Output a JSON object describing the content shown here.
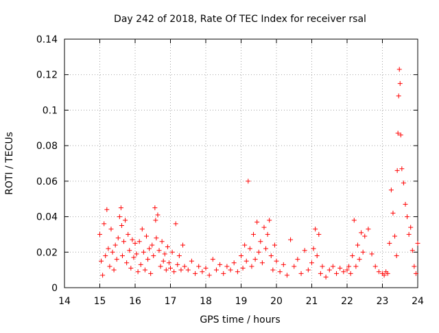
{
  "chart_data": {
    "type": "scatter",
    "title": "Day 242 of 2018, Rate Of TEC Index for receiver rsal",
    "xlabel": "GPS time / hours",
    "ylabel": "ROTI / TECUs",
    "xlim": [
      14,
      24
    ],
    "ylim": [
      0,
      0.14
    ],
    "x_ticks": [
      14,
      15,
      16,
      17,
      18,
      19,
      20,
      21,
      22,
      23,
      24
    ],
    "x_tick_labels": [
      "14",
      "15",
      "16",
      "17",
      "18",
      "19",
      "20",
      "21",
      "22",
      "23",
      "24"
    ],
    "y_ticks": [
      0,
      0.02,
      0.04,
      0.06,
      0.08,
      0.1,
      0.12,
      0.14
    ],
    "y_tick_labels": [
      "0",
      "0.02",
      "0.04",
      "0.06",
      "0.08",
      "0.1",
      "0.12",
      "0.14"
    ],
    "grid": true,
    "marker": "plus",
    "marker_color": "#ff0000",
    "series": [
      {
        "name": "ROTI",
        "x": [
          15.0,
          15.04,
          15.08,
          15.12,
          15.16,
          15.2,
          15.24,
          15.28,
          15.32,
          15.36,
          15.4,
          15.44,
          15.48,
          15.52,
          15.56,
          15.6,
          15.62,
          15.64,
          15.68,
          15.72,
          15.76,
          15.8,
          15.84,
          15.88,
          15.92,
          15.96,
          16.0,
          16.04,
          16.08,
          16.12,
          16.16,
          16.2,
          16.24,
          16.28,
          16.32,
          16.36,
          16.4,
          16.44,
          16.48,
          16.52,
          16.56,
          16.58,
          16.6,
          16.64,
          16.68,
          16.72,
          16.76,
          16.8,
          16.84,
          16.88,
          16.92,
          16.96,
          17.0,
          17.05,
          17.1,
          17.15,
          17.2,
          17.25,
          17.3,
          17.35,
          17.4,
          17.5,
          17.6,
          17.7,
          17.8,
          17.9,
          18.0,
          18.1,
          18.2,
          18.3,
          18.4,
          18.5,
          18.6,
          18.7,
          18.8,
          18.9,
          19.0,
          19.05,
          19.1,
          19.15,
          19.2,
          19.25,
          19.3,
          19.35,
          19.4,
          19.45,
          19.5,
          19.55,
          19.6,
          19.65,
          19.7,
          19.75,
          19.8,
          19.85,
          19.9,
          19.95,
          20.0,
          20.1,
          20.2,
          20.3,
          20.4,
          20.5,
          20.6,
          20.7,
          20.8,
          20.9,
          21.0,
          21.05,
          21.1,
          21.15,
          21.2,
          21.25,
          21.3,
          21.4,
          21.5,
          21.6,
          21.7,
          21.8,
          21.9,
          22.0,
          22.05,
          22.1,
          22.15,
          22.2,
          22.25,
          22.3,
          22.35,
          22.4,
          22.45,
          22.5,
          22.6,
          22.7,
          22.8,
          22.9,
          23.0,
          23.05,
          23.1,
          23.15,
          23.2,
          23.25,
          23.3,
          23.35,
          23.4,
          23.42,
          23.44,
          23.46,
          23.48,
          23.5,
          23.52,
          23.55,
          23.6,
          23.65,
          23.7,
          23.75,
          23.8,
          23.85,
          23.9,
          23.95,
          24.0
        ],
        "y": [
          0.03,
          0.015,
          0.007,
          0.036,
          0.018,
          0.044,
          0.022,
          0.012,
          0.033,
          0.02,
          0.01,
          0.024,
          0.016,
          0.028,
          0.04,
          0.045,
          0.035,
          0.018,
          0.026,
          0.038,
          0.014,
          0.03,
          0.021,
          0.011,
          0.027,
          0.017,
          0.025,
          0.019,
          0.009,
          0.026,
          0.013,
          0.033,
          0.02,
          0.01,
          0.029,
          0.016,
          0.022,
          0.008,
          0.024,
          0.018,
          0.045,
          0.038,
          0.028,
          0.041,
          0.021,
          0.012,
          0.026,
          0.015,
          0.019,
          0.01,
          0.023,
          0.014,
          0.011,
          0.02,
          0.009,
          0.036,
          0.013,
          0.018,
          0.01,
          0.024,
          0.012,
          0.01,
          0.015,
          0.008,
          0.012,
          0.009,
          0.011,
          0.007,
          0.016,
          0.01,
          0.013,
          0.008,
          0.012,
          0.01,
          0.014,
          0.009,
          0.018,
          0.011,
          0.024,
          0.015,
          0.06,
          0.022,
          0.012,
          0.03,
          0.016,
          0.037,
          0.02,
          0.026,
          0.014,
          0.034,
          0.022,
          0.03,
          0.038,
          0.018,
          0.01,
          0.024,
          0.015,
          0.009,
          0.013,
          0.007,
          0.027,
          0.012,
          0.016,
          0.008,
          0.021,
          0.01,
          0.014,
          0.022,
          0.033,
          0.018,
          0.03,
          0.008,
          0.012,
          0.006,
          0.01,
          0.012,
          0.008,
          0.011,
          0.009,
          0.01,
          0.012,
          0.008,
          0.018,
          0.038,
          0.012,
          0.024,
          0.016,
          0.031,
          0.02,
          0.029,
          0.033,
          0.019,
          0.012,
          0.009,
          0.008,
          0.007,
          0.009,
          0.008,
          0.025,
          0.055,
          0.042,
          0.029,
          0.018,
          0.066,
          0.087,
          0.108,
          0.123,
          0.115,
          0.086,
          0.067,
          0.059,
          0.047,
          0.04,
          0.03,
          0.034,
          0.021,
          0.012,
          0.008,
          0.025
        ]
      }
    ]
  }
}
